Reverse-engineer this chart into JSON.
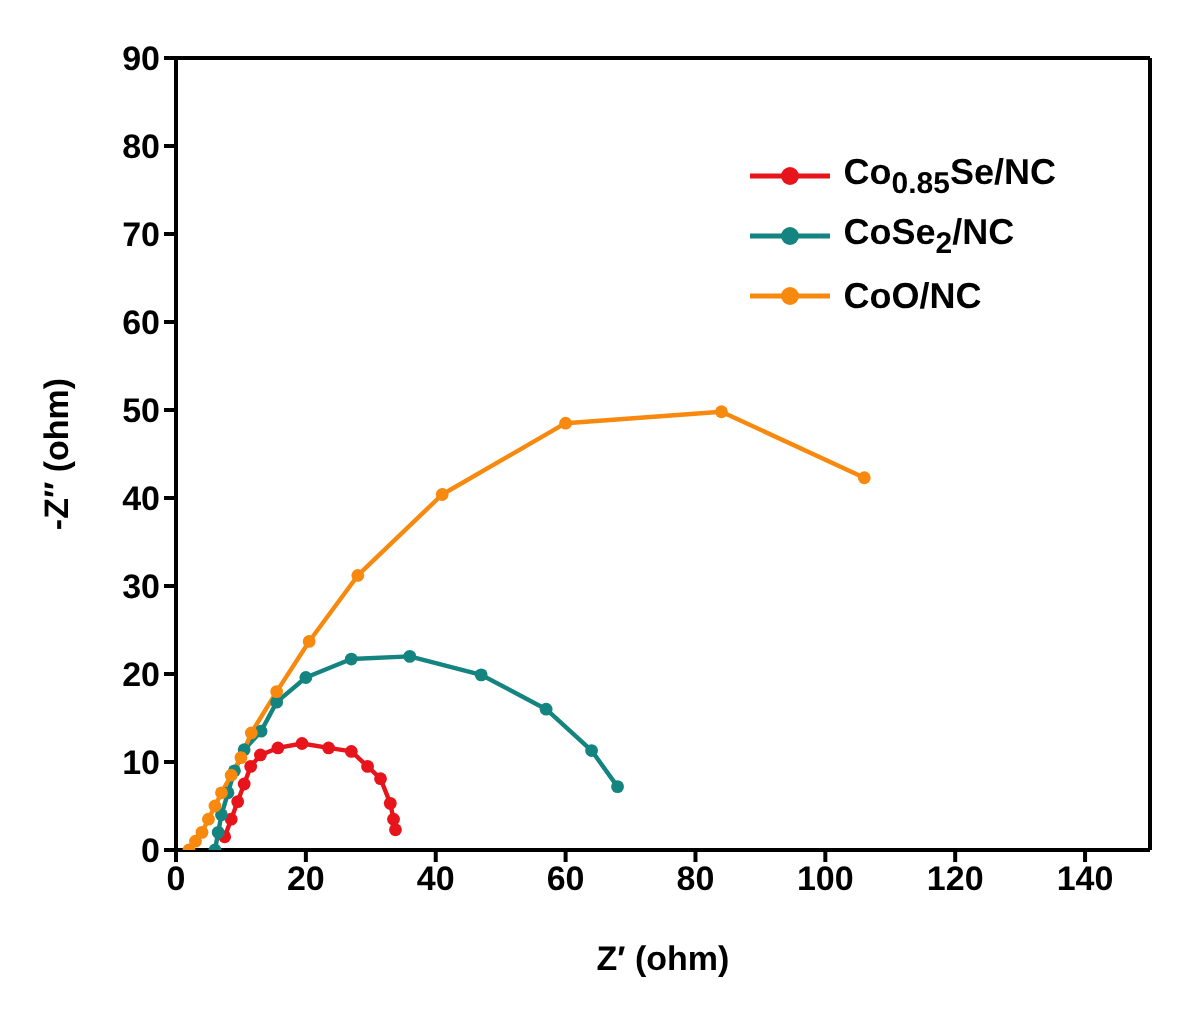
{
  "chart_data": {
    "type": "line",
    "xlabel": "Z′ (ohm)",
    "ylabel": "-Z″ (ohm)",
    "xlim": [
      0,
      150
    ],
    "xticks": [
      0,
      20,
      40,
      60,
      80,
      100,
      120,
      140
    ],
    "ylim": [
      0,
      90
    ],
    "yticks": [
      0,
      10,
      20,
      30,
      40,
      50,
      60,
      70,
      80,
      90
    ],
    "legend": "top right",
    "marker": "circle",
    "line_style": "solid",
    "series": [
      {
        "name": "Co$_{0.85}$Se/NC",
        "color": "#e8141c",
        "x": [
          7.5,
          8.5,
          9.5,
          10.5,
          11.5,
          13,
          15.7,
          19.4,
          23.5,
          27,
          29.5,
          31.5,
          33,
          33.5,
          33.8
        ],
        "values": [
          1.5,
          3.5,
          5.5,
          7.5,
          9.5,
          10.8,
          11.6,
          12.1,
          11.6,
          11.2,
          9.5,
          8.1,
          5.3,
          3.5,
          2.3
        ]
      },
      {
        "name": "CoSe$_{2}$/NC",
        "color": "#138480",
        "x": [
          6,
          6.5,
          7,
          8,
          9,
          10.5,
          13.1,
          15.5,
          20,
          27,
          36,
          47,
          57,
          64,
          68
        ],
        "values": [
          0,
          2,
          4,
          6.5,
          9,
          11.4,
          13.5,
          16.8,
          19.6,
          21.7,
          22,
          19.9,
          16,
          11.3,
          7.2
        ]
      },
      {
        "name": "CoO/NC",
        "color": "#f7890f",
        "x": [
          2,
          3,
          4,
          5,
          6,
          7,
          8.5,
          10,
          11.6,
          15.5,
          20.5,
          28,
          41,
          60,
          84,
          106
        ],
        "values": [
          0,
          1,
          2,
          3.5,
          5,
          6.5,
          8.5,
          10.5,
          13.3,
          18,
          23.7,
          31.2,
          40.4,
          48.5,
          49.8,
          42.3
        ]
      }
    ]
  }
}
